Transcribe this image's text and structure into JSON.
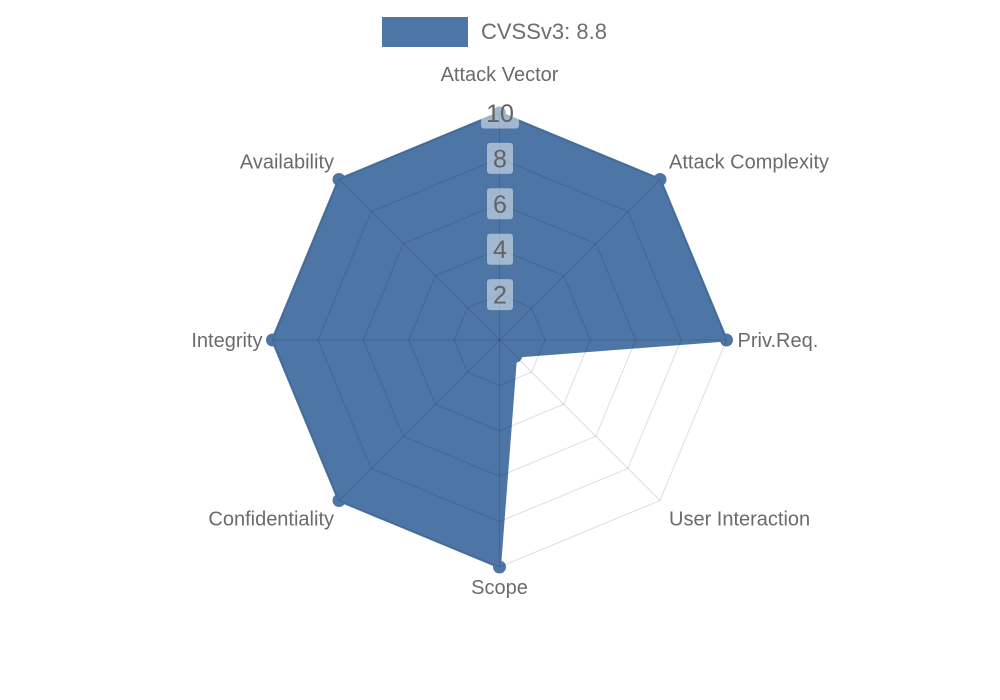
{
  "background_color": "#ffffff",
  "legend": {
    "label": "CVSSv3: 8.8",
    "swatch_color": "#4d76a6"
  },
  "chart_data": {
    "type": "radar",
    "title": "",
    "axes": [
      "Attack Vector",
      "Attack Complexity",
      "Priv.Req.",
      "User Interaction",
      "Scope",
      "Confidentiality",
      "Integrity",
      "Availability"
    ],
    "series": [
      {
        "name": "CVSSv3: 8.8",
        "values": [
          10,
          10,
          10,
          1,
          10,
          10,
          10,
          10
        ],
        "color": "#4d76a6"
      }
    ],
    "rmin": 0,
    "rmax": 10,
    "tick_values": [
      2,
      4,
      6,
      8,
      10
    ],
    "tick_labels": [
      "2",
      "4",
      "6",
      "8",
      "10"
    ],
    "grid": true,
    "grid_shape": "polygon",
    "grid_line_color": "rgba(0,0,0,0.13)",
    "tick_box_color": "rgba(255,255,255,0.48)",
    "tick_label_color": "#636363",
    "axis_label_color": "#6b6b6b",
    "legend_position": "top"
  }
}
